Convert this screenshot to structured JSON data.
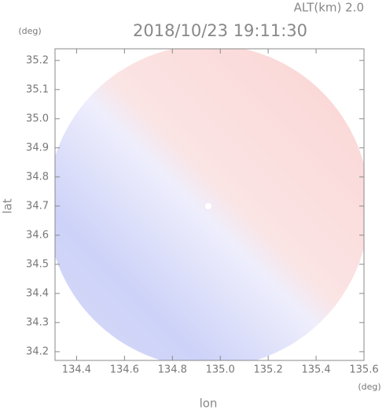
{
  "chart_data": {
    "type": "image",
    "title": "2018/10/23 19:11:30",
    "subtitle": "ALT(km) 2.0",
    "x_label": "lon",
    "x_unit": "(deg)",
    "y_label": "lat",
    "y_unit": "(deg)",
    "xlim": [
      134.31,
      135.6
    ],
    "xticks": [
      134.4,
      134.6,
      134.8,
      {
        "value": 135,
        "label": "135.0"
      },
      135.2,
      135.4,
      135.6
    ],
    "ylim": [
      34.17,
      35.24
    ],
    "yticks": [
      34.2,
      34.3,
      34.4,
      34.5,
      34.6,
      34.7,
      34.8,
      34.9,
      {
        "value": 35,
        "label": "35.0"
      },
      35.1,
      35.2
    ],
    "grid": false
  }
}
